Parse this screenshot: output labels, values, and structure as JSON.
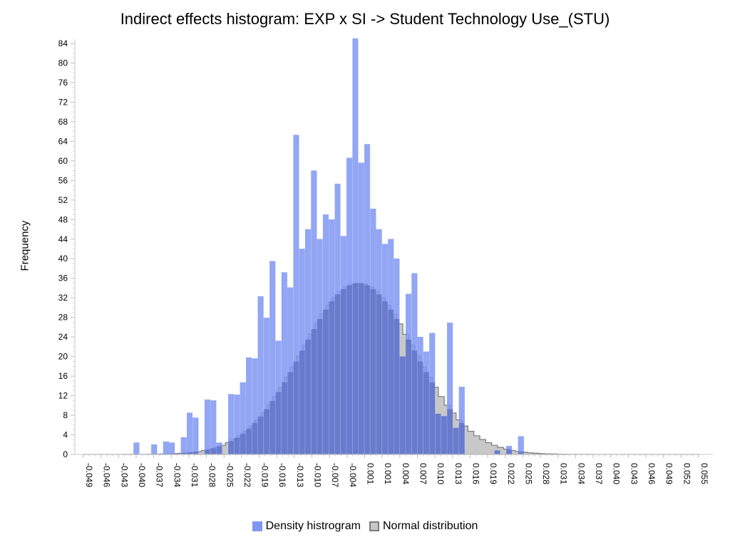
{
  "chart_data": {
    "type": "histogram",
    "title": "Indirect effects histogram: EXP x SI -> Student Technology Use_(STU)",
    "ylabel": "Frequency",
    "xlabel": "",
    "ylim": [
      0,
      84
    ],
    "y_ticks": [
      0,
      4,
      8,
      12,
      16,
      20,
      24,
      28,
      32,
      36,
      40,
      44,
      48,
      52,
      56,
      60,
      64,
      68,
      72,
      76,
      80,
      84
    ],
    "x_tick_labels": [
      "-0.049",
      "-0.046",
      "-0.043",
      "-0.040",
      "-0.037",
      "-0.034",
      "-0.031",
      "-0.028",
      "-0.025",
      "-0.022",
      "-0.019",
      "-0.016",
      "-0.013",
      "-0.010",
      "-0.007",
      "-0.004",
      "0.001",
      "0.001",
      "0.004",
      "0.007",
      "0.010",
      "0.013",
      "0.016",
      "0.019",
      "0.022",
      "0.025",
      "0.028",
      "0.031",
      "0.034",
      "0.037",
      "0.040",
      "0.043",
      "0.046",
      "0.049",
      "0.052",
      "0.055"
    ],
    "xlim": [
      -0.049,
      0.055
    ],
    "legend": {
      "position": "bottom",
      "entries": [
        "Density histrogram",
        "Normal distribution"
      ]
    },
    "colors": {
      "histogram": "#7f96f2",
      "normal_fill": "#c8c8c8",
      "normal_stroke": "#7a7a7a",
      "overlap": "#5c6fc2"
    },
    "normal_distribution": {
      "mean": -0.0025,
      "sd": 0.0095,
      "peak": 35
    },
    "series": [
      {
        "name": "Density histrogram",
        "x": [
          -0.04,
          -0.037,
          -0.035,
          -0.034,
          -0.032,
          -0.031,
          -0.03,
          -0.029,
          -0.028,
          -0.027,
          -0.026,
          -0.025,
          -0.024,
          -0.023,
          -0.022,
          -0.021,
          -0.02,
          -0.019,
          -0.018,
          -0.017,
          -0.016,
          -0.015,
          -0.014,
          -0.013,
          -0.012,
          -0.011,
          -0.01,
          -0.009,
          -0.008,
          -0.007,
          -0.006,
          -0.005,
          -0.004,
          -0.003,
          -0.002,
          -0.001,
          0.0,
          0.001,
          0.002,
          0.003,
          0.004,
          0.005,
          0.006,
          0.007,
          0.008,
          0.009,
          0.01,
          0.011,
          0.012,
          0.013,
          0.014,
          0.015,
          0.016,
          0.017,
          0.018,
          0.019,
          0.021,
          0.023,
          0.025
        ],
        "values": [
          2.4,
          2.0,
          2.6,
          2.4,
          3.5,
          8.5,
          7.5,
          0,
          11.2,
          11.0,
          2.4,
          0,
          12.3,
          12.2,
          14.7,
          19.8,
          19.6,
          32.3,
          27.9,
          39.5,
          23.2,
          37.2,
          34.1,
          65.3,
          42.0,
          46.0,
          58.0,
          44.0,
          49.0,
          48.0,
          55.3,
          44.6,
          60.6,
          85.0,
          59.6,
          63.4,
          50.2,
          46.0,
          43.0,
          44.0,
          40.0,
          20.0,
          32.8,
          37.0,
          24.0,
          21.0,
          24.8,
          8.3,
          7.8,
          26.9,
          5.4,
          13.8,
          0,
          0,
          0,
          0,
          0.8,
          1.7,
          3.7
        ]
      }
    ]
  }
}
